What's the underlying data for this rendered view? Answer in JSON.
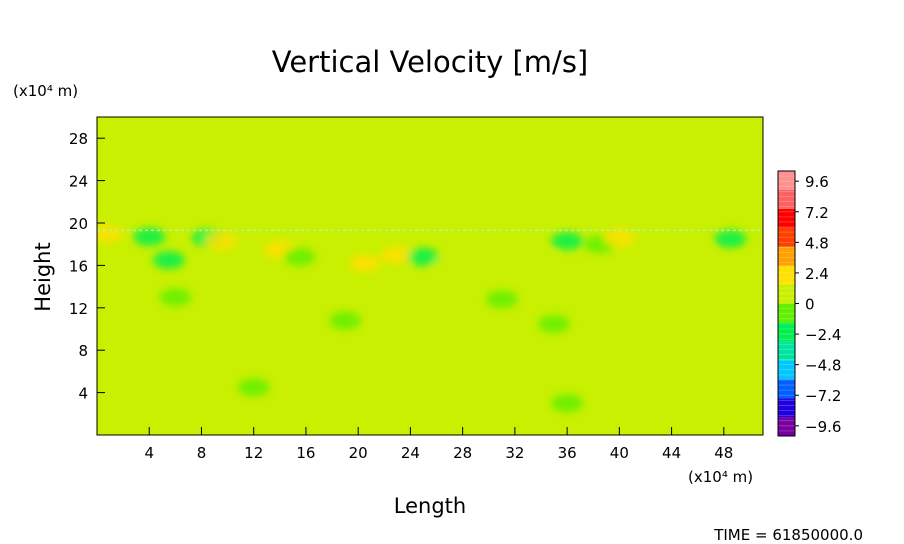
{
  "chart_data": {
    "type": "heatmap",
    "title": "Vertical Velocity [m/s]",
    "xlabel": "Length",
    "ylabel": "Height",
    "x_unit": "(x10⁴ m)",
    "y_unit": "(x10⁴ m)",
    "x_ticks": [
      4,
      8,
      12,
      16,
      20,
      24,
      28,
      32,
      36,
      40,
      44,
      48
    ],
    "y_ticks": [
      4,
      8,
      12,
      16,
      20,
      24,
      28
    ],
    "xlim": [
      0,
      51
    ],
    "ylim": [
      0,
      30
    ],
    "background_value": 0.3,
    "colorbar": {
      "levels": [
        -9.6,
        -7.2,
        -4.8,
        -2.4,
        0,
        2.4,
        4.8,
        7.2,
        9.6
      ],
      "tick_labels": [
        "9.6",
        "7.2",
        "4.8",
        "2.4",
        "0",
        "−2.4",
        "−4.8",
        "−7.2",
        "−9.6"
      ],
      "range": [
        -10.4,
        10.4
      ],
      "colors": [
        "#7800a0",
        "#2000e0",
        "#0060ff",
        "#00c8ff",
        "#00e6a0",
        "#00f050",
        "#60f000",
        "#c8f000",
        "#ffe000",
        "#ffa000",
        "#ff4000",
        "#ff0000",
        "#ff6060",
        "#ff9090"
      ]
    },
    "features": [
      {
        "x": 0.8,
        "y": 19.0,
        "value": 2.2
      },
      {
        "x": 4.0,
        "y": 18.7,
        "value": -2.0
      },
      {
        "x": 5.5,
        "y": 16.5,
        "value": -1.8
      },
      {
        "x": 8.5,
        "y": 18.6,
        "value": -2.4
      },
      {
        "x": 9.5,
        "y": 18.3,
        "value": 2.0
      },
      {
        "x": 14.0,
        "y": 17.5,
        "value": 1.8
      },
      {
        "x": 15.5,
        "y": 16.8,
        "value": -1.2
      },
      {
        "x": 20.5,
        "y": 16.2,
        "value": 1.6
      },
      {
        "x": 23.0,
        "y": 17.0,
        "value": 2.0
      },
      {
        "x": 25.0,
        "y": 16.8,
        "value": -1.6
      },
      {
        "x": 27.0,
        "y": 16.0,
        "value": 1.2
      },
      {
        "x": 29.5,
        "y": 16.3,
        "value": 1.4
      },
      {
        "x": 34.0,
        "y": 16.5,
        "value": 1.0
      },
      {
        "x": 36.0,
        "y": 18.3,
        "value": -2.0
      },
      {
        "x": 38.5,
        "y": 18.0,
        "value": -1.4
      },
      {
        "x": 40.0,
        "y": 18.6,
        "value": 1.8
      },
      {
        "x": 46.0,
        "y": 17.0,
        "value": 1.0
      },
      {
        "x": 48.5,
        "y": 18.5,
        "value": -1.5
      },
      {
        "x": 50.0,
        "y": 16.0,
        "value": 1.2
      },
      {
        "x": 6.0,
        "y": 13.0,
        "value": -1.0
      },
      {
        "x": 13.0,
        "y": 12.2,
        "value": 1.0
      },
      {
        "x": 19.0,
        "y": 10.8,
        "value": -0.8
      },
      {
        "x": 31.0,
        "y": 12.8,
        "value": -1.0
      },
      {
        "x": 35.0,
        "y": 10.5,
        "value": -0.8
      },
      {
        "x": 42.0,
        "y": 11.5,
        "value": 0.9
      },
      {
        "x": 49.0,
        "y": 9.5,
        "value": 0.8
      },
      {
        "x": 12.0,
        "y": 4.5,
        "value": -0.6
      },
      {
        "x": 36.0,
        "y": 3.0,
        "value": -0.6
      },
      {
        "x": 44.0,
        "y": 6.0,
        "value": 0.6
      }
    ],
    "time_label": "TIME = 61850000.0"
  }
}
